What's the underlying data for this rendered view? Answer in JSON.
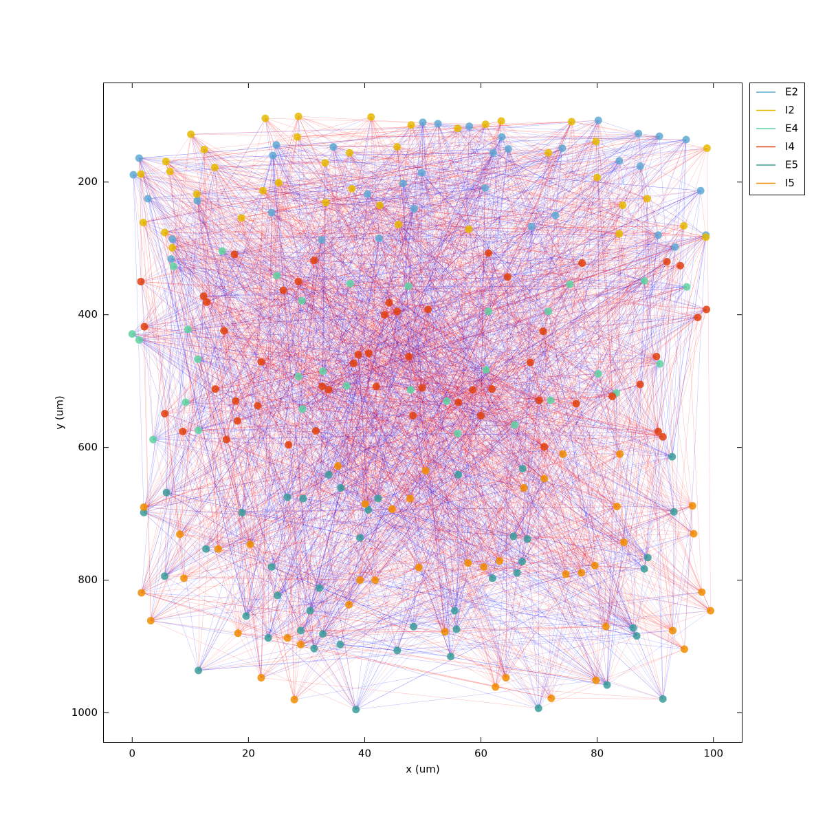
{
  "chart_data": {
    "type": "scatter",
    "xlabel": "x (um)",
    "ylabel": "y (um)",
    "xlim": [
      -5,
      105
    ],
    "ylim": [
      1045,
      50
    ],
    "xticks": [
      0,
      20,
      40,
      60,
      80,
      100
    ],
    "yticks": [
      200,
      400,
      600,
      800,
      1000
    ],
    "legend": "outside upper right",
    "series": [
      {
        "name": "E2",
        "color": "#5fa8d3",
        "x": [
          50.0,
          52.6,
          58.0,
          63.6,
          80.2,
          87.1,
          90.7,
          95.3,
          97.8,
          98.7,
          93.4,
          83.8,
          87.4,
          74.0,
          64.7,
          62.1,
          49.8,
          46.6,
          40.5,
          34.6,
          24.8,
          24.2,
          1.2,
          0.2,
          2.7,
          11.2,
          24.0,
          32.6,
          42.5,
          48.5,
          60.7,
          68.7,
          72.8,
          90.5,
          6.9,
          6.7
        ],
        "values": [
          110,
          112,
          116,
          132,
          107,
          127,
          131,
          136,
          213,
          280,
          298,
          168,
          176,
          149,
          150,
          156,
          186,
          202,
          218,
          147,
          144,
          160,
          164,
          189,
          225,
          228,
          246,
          287,
          285,
          240,
          209,
          267,
          250,
          280,
          286,
          316
        ]
      },
      {
        "name": "I2",
        "color": "#e6b800",
        "x": [
          22.9,
          28.6,
          41.1,
          10.1,
          12.4,
          28.4,
          48.0,
          56.0,
          60.8,
          63.5,
          75.6,
          79.8,
          98.9,
          5.8,
          6.5,
          1.5,
          14.2,
          33.2,
          37.4,
          45.6,
          71.6,
          80.0,
          88.6,
          84.4,
          94.9,
          98.7,
          1.9,
          5.6,
          6.9,
          11.1,
          18.8,
          22.5,
          25.2,
          33.3,
          37.8,
          42.6,
          45.8,
          57.9,
          83.8
        ],
        "values": [
          104,
          101,
          102,
          128,
          151,
          132,
          114,
          119,
          113,
          108,
          109,
          139,
          149,
          169,
          184,
          188,
          178,
          171,
          156,
          147,
          156,
          193,
          225,
          235,
          266,
          283,
          261,
          276,
          299,
          218,
          254,
          213,
          201,
          231,
          210,
          235,
          264,
          271,
          278
        ]
      },
      {
        "name": "E4",
        "color": "#5fd3a0",
        "x": [
          0.0,
          1.2,
          11.3,
          9.2,
          3.6,
          11.4,
          9.6,
          7.1,
          15.5,
          24.9,
          29.2,
          37.5,
          47.5,
          61.3,
          71.6,
          75.3,
          88.1,
          95.4,
          90.8,
          83.3,
          80.2,
          72.0,
          65.8,
          56.0,
          54.1,
          47.9,
          36.9,
          28.6,
          32.8,
          29.3,
          60.9
        ],
        "values": [
          429,
          438,
          467,
          532,
          588,
          574,
          422,
          327,
          304,
          341,
          379,
          353,
          357,
          395,
          395,
          354,
          349,
          358,
          474,
          518,
          489,
          529,
          566,
          579,
          530,
          513,
          507,
          493,
          485,
          542,
          483
        ]
      },
      {
        "name": "I4",
        "color": "#e0400c",
        "x": [
          1.5,
          2.1,
          12.3,
          12.8,
          15.8,
          14.3,
          17.8,
          18.1,
          5.6,
          8.7,
          16.2,
          22.2,
          21.6,
          17.6,
          26.0,
          28.6,
          31.3,
          32.7,
          33.8,
          31.6,
          26.9,
          38.1,
          38.9,
          40.7,
          42.0,
          43.4,
          44.2,
          45.6,
          50.9,
          47.6,
          49.9,
          48.3,
          56.1,
          58.6,
          61.9,
          60.0,
          64.6,
          61.3,
          70.7,
          68.5,
          70.0,
          76.4,
          82.6,
          87.4,
          77.4,
          90.2,
          92.0,
          94.3,
          97.3,
          98.8,
          90.5,
          91.3,
          70.9
        ],
        "values": [
          350,
          418,
          372,
          381,
          424,
          512,
          530,
          560,
          549,
          576,
          588,
          471,
          537,
          309,
          363,
          350,
          318,
          508,
          513,
          575,
          596,
          473,
          460,
          458,
          508,
          400,
          382,
          395,
          392,
          463,
          510,
          552,
          532,
          513,
          512,
          552,
          343,
          307,
          425,
          472,
          529,
          534,
          523,
          505,
          322,
          463,
          320,
          326,
          404,
          392,
          576,
          584,
          599
        ]
      },
      {
        "name": "E5",
        "color": "#3a9e9a",
        "x": [
          2.0,
          5.9,
          18.9,
          5.6,
          12.7,
          24.0,
          25.0,
          19.6,
          23.4,
          29.0,
          31.3,
          32.8,
          35.8,
          32.2,
          30.6,
          38.5,
          45.6,
          48.4,
          54.8,
          55.8,
          55.5,
          33.8,
          35.9,
          26.7,
          29.4,
          42.3,
          39.2,
          40.6,
          56.1,
          67.2,
          65.6,
          68.0,
          67.1,
          66.2,
          62.0,
          81.7,
          86.2,
          86.8,
          88.1,
          88.7,
          93.2,
          92.9,
          69.9,
          91.3,
          11.4
        ],
        "values": [
          698,
          668,
          698,
          794,
          753,
          780,
          823,
          854,
          887,
          876,
          903,
          881,
          897,
          812,
          846,
          995,
          906,
          870,
          915,
          874,
          846,
          641,
          661,
          675,
          677,
          677,
          736,
          694,
          641,
          632,
          734,
          738,
          772,
          789,
          797,
          958,
          872,
          884,
          783,
          766,
          697,
          614,
          993,
          979,
          936
        ]
      },
      {
        "name": "I5",
        "color": "#f08c00",
        "x": [
          1.6,
          3.2,
          2.0,
          8.2,
          8.9,
          14.8,
          20.3,
          18.2,
          22.2,
          26.7,
          29.0,
          27.9,
          37.3,
          39.2,
          41.8,
          49.3,
          53.8,
          44.7,
          40.1,
          47.8,
          50.5,
          35.4,
          57.8,
          60.5,
          63.2,
          62.5,
          64.3,
          72.1,
          79.8,
          81.5,
          79.6,
          74.6,
          77.3,
          70.9,
          67.4,
          74.1,
          83.4,
          84.6,
          83.9,
          96.4,
          96.6,
          98.0,
          99.5,
          93.0,
          95.0
        ],
        "values": [
          819,
          861,
          690,
          731,
          797,
          753,
          746,
          880,
          947,
          887,
          897,
          980,
          837,
          800,
          800,
          781,
          878,
          693,
          685,
          677,
          635,
          628,
          774,
          780,
          771,
          961,
          947,
          978,
          951,
          870,
          778,
          791,
          789,
          647,
          661,
          610,
          689,
          743,
          610,
          688,
          730,
          818,
          846,
          876,
          904
        ]
      }
    ]
  }
}
